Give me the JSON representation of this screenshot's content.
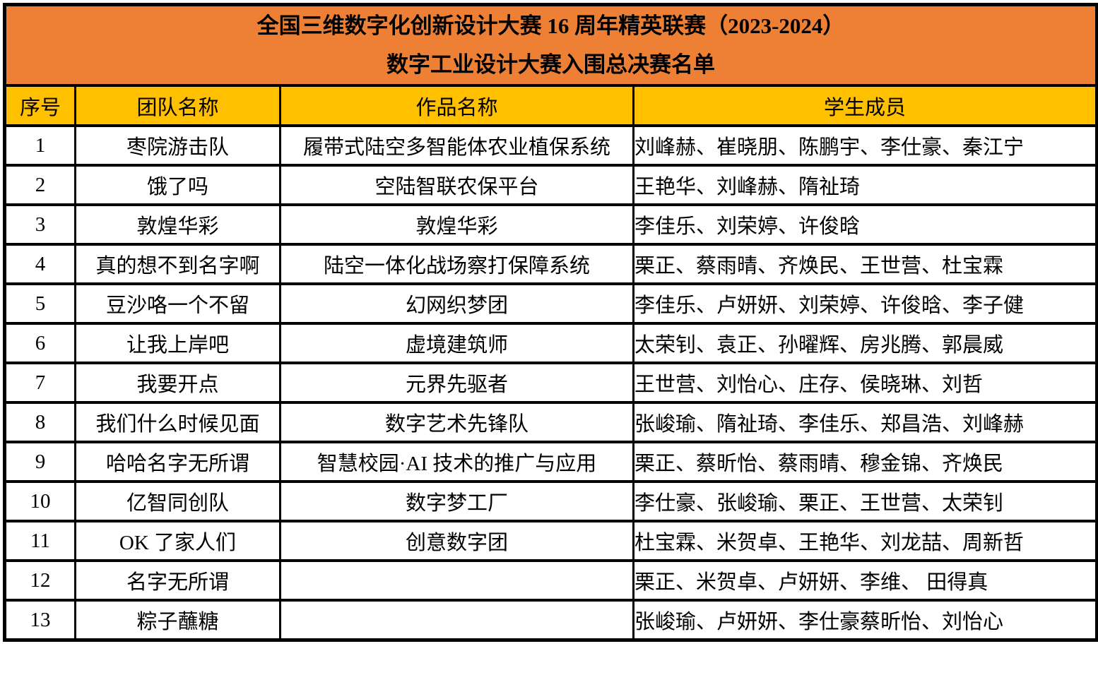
{
  "colors": {
    "title_header_bg": "#ED8034",
    "column_header_bg": "#FFC000",
    "border": "#000000",
    "text": "#000000",
    "page_bg": "#FFFFFF"
  },
  "table": {
    "title_line1": "全国三维数字化创新设计大赛 16 周年精英联赛（2023-2024）",
    "title_line2": "数字工业设计大赛入围总决赛名单",
    "columns": [
      "序号",
      "团队名称",
      "作品名称",
      "学生成员"
    ],
    "rows": [
      {
        "no": "1",
        "team": "枣院游击队",
        "work": "履带式陆空多智能体农业植保系统",
        "members": "刘峰赫、崔晓朋、陈鹏宇、李仕豪、秦江宁"
      },
      {
        "no": "2",
        "team": "饿了吗",
        "work": "空陆智联农保平台",
        "members": "王艳华、刘峰赫、隋祉琦"
      },
      {
        "no": "3",
        "team": "敦煌华彩",
        "work": "敦煌华彩",
        "members": "李佳乐、刘荣婷、许俊晗"
      },
      {
        "no": "4",
        "team": "真的想不到名字啊",
        "work": "陆空一体化战场察打保障系统",
        "members": "栗正、蔡雨晴、齐焕民、王世营、杜宝霖"
      },
      {
        "no": "5",
        "team": "豆沙咯一个不留",
        "work": "幻网织梦团",
        "members": "李佳乐、卢妍妍、刘荣婷、许俊晗、李子健"
      },
      {
        "no": "6",
        "team": "让我上岸吧",
        "work": "虚境建筑师",
        "members": "太荣钊、袁正、孙曜辉、房兆腾、郭晨威"
      },
      {
        "no": "7",
        "team": "我要开点",
        "work": "元界先驱者",
        "members": "王世营、刘怡心、庄存、侯晓琳、刘哲"
      },
      {
        "no": "8",
        "team": "我们什么时候见面",
        "work": "数字艺术先锋队",
        "members": "张峻瑜、隋祉琦、李佳乐、郑昌浩、刘峰赫"
      },
      {
        "no": "9",
        "team": "哈哈名字无所谓",
        "work": "智慧校园·AI 技术的推广与应用",
        "members": "栗正、蔡昕怡、蔡雨晴、穆金锦、齐焕民"
      },
      {
        "no": "10",
        "team": "亿智同创队",
        "work": "数字梦工厂",
        "members": "李仕豪、张峻瑜、栗正、王世营、太荣钊"
      },
      {
        "no": "11",
        "team": "OK 了家人们",
        "work": "创意数字团",
        "members": "杜宝霖、米贺卓、王艳华、刘龙喆、周新哲"
      },
      {
        "no": "12",
        "team": "名字无所谓",
        "work": "",
        "members": "栗正、米贺卓、卢妍妍、李维、 田得真"
      },
      {
        "no": "13",
        "team": "粽子蘸糖",
        "work": "",
        "members": "张峻瑜、卢妍妍、李仕豪蔡昕怡、刘怡心"
      }
    ]
  }
}
